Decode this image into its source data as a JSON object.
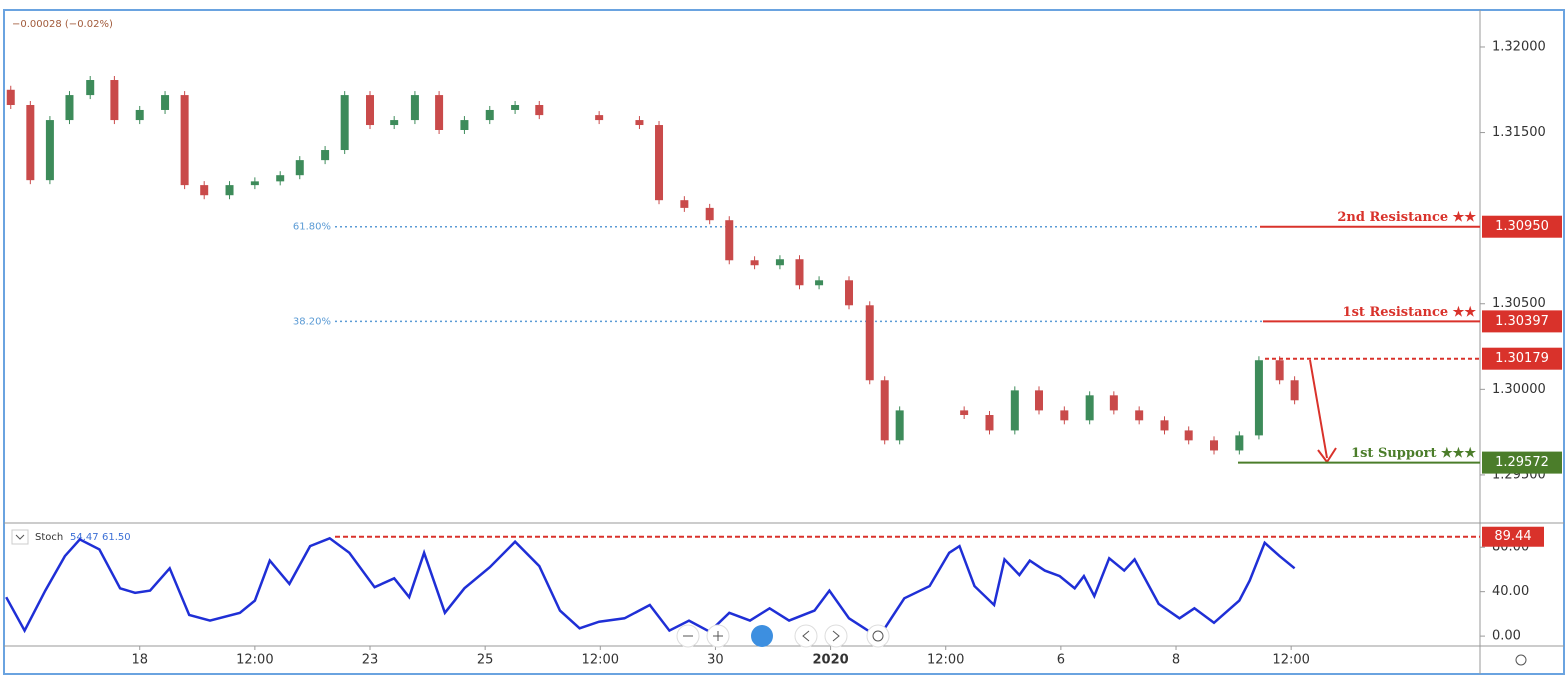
{
  "chart_data": {
    "type": "candlestick",
    "header": "−0.00028 (−0.02%)",
    "xlim": [
      -1.17,
      11.64
    ],
    "xticks": [
      {
        "value": 0,
        "label": "18"
      },
      {
        "value": 1,
        "label": "12:00"
      },
      {
        "value": 2,
        "label": "23"
      },
      {
        "value": 3,
        "label": "25"
      },
      {
        "value": 4,
        "label": "12:00"
      },
      {
        "value": 5,
        "label": "30"
      },
      {
        "value": 6,
        "label": "2020"
      },
      {
        "value": 7,
        "label": "12:00"
      },
      {
        "value": 8,
        "label": "6"
      },
      {
        "value": 9,
        "label": "8"
      },
      {
        "value": 10,
        "label": "12:00"
      }
    ],
    "ylim": [
      1.29225,
      1.32216
    ],
    "yticks": [
      {
        "value": 1.295,
        "label": "1.29500"
      },
      {
        "value": 1.3,
        "label": "1.30000"
      },
      {
        "value": 1.305,
        "label": "1.30500"
      },
      {
        "value": 1.315,
        "label": "1.31500"
      },
      {
        "value": 1.32,
        "label": "1.32000"
      }
    ],
    "up_color": "#3d8b5a",
    "down_color": "#c94a4a",
    "x": [
      -1.12,
      -0.95,
      -0.78,
      -0.61,
      -0.43,
      -0.22,
      0,
      0.22,
      0.39,
      0.56,
      0.78,
      1,
      1.22,
      1.39,
      1.61,
      1.78,
      2,
      2.21,
      2.39,
      2.6,
      2.82,
      3.04,
      3.26,
      3.47,
      3.99,
      4.34,
      4.51,
      4.73,
      4.95,
      5.12,
      5.34,
      5.56,
      5.73,
      5.9,
      6.16,
      6.34,
      6.47,
      6.6,
      7.16,
      7.38,
      7.6,
      7.81,
      8.03,
      8.25,
      8.46,
      8.68,
      8.9,
      9.11,
      9.33,
      9.55,
      9.72,
      9.9,
      10.03
    ],
    "open": [
      1.3175,
      1.31661,
      1.31222,
      1.31573,
      1.31719,
      1.31807,
      1.31573,
      1.31632,
      1.31719,
      1.31193,
      1.31134,
      1.31193,
      1.31215,
      1.31251,
      1.31339,
      1.31398,
      1.31719,
      1.31544,
      1.31573,
      1.31719,
      1.31515,
      1.31573,
      1.31632,
      1.31661,
      1.31602,
      1.31573,
      1.31544,
      1.31105,
      1.3106,
      1.30988,
      1.30754,
      1.30725,
      1.3076,
      1.30608,
      1.30637,
      1.30491,
      1.30053,
      1.29702,
      1.29877,
      1.2985,
      1.2976,
      1.29994,
      1.29877,
      1.29819,
      1.29965,
      1.29877,
      1.29819,
      1.2976,
      1.29702,
      1.29643,
      1.29731,
      1.3017,
      1.30053
    ],
    "close": [
      1.31661,
      1.31222,
      1.31573,
      1.31719,
      1.31807,
      1.31573,
      1.31632,
      1.31719,
      1.31193,
      1.31134,
      1.31193,
      1.31215,
      1.31251,
      1.31339,
      1.31398,
      1.31719,
      1.31544,
      1.31573,
      1.31719,
      1.31515,
      1.31573,
      1.31632,
      1.31661,
      1.31602,
      1.31573,
      1.31544,
      1.31105,
      1.3106,
      1.30988,
      1.30754,
      1.30725,
      1.3076,
      1.30608,
      1.30637,
      1.30491,
      1.30053,
      1.29702,
      1.29877,
      1.2985,
      1.2976,
      1.29994,
      1.29877,
      1.29819,
      1.29965,
      1.29877,
      1.29819,
      1.2976,
      1.29702,
      1.29643,
      1.29731,
      1.3017,
      1.30053,
      1.29936
    ],
    "fib_levels": [
      {
        "label": "61.80%",
        "value": 1.3095
      },
      {
        "label": "38.20%",
        "value": 1.30397
      }
    ],
    "fib_color": "#5b9bd5",
    "levels": [
      {
        "label": "2nd Resistance ★★",
        "value": 1.3095,
        "value_label": "1.30950",
        "color": "#d9322b"
      },
      {
        "label": "1st Resistance ★★",
        "value": 1.30397,
        "value_label": "1.30397",
        "color": "#d9322b"
      },
      {
        "value": 1.30179,
        "value_label": "1.30179",
        "color": "#d9322b"
      },
      {
        "label": "1st Support ★★★",
        "value": 1.29572,
        "value_label": "1.29572",
        "color": "#4b7d2a"
      }
    ],
    "stoch": {
      "name": "Stoch",
      "k_label": "54.47",
      "d_label": "61.50",
      "color": "#1f2fd6",
      "ylim": [
        -8,
        100
      ],
      "yticks": [
        {
          "value": 0,
          "label": "0.00"
        },
        {
          "value": 40,
          "label": "40.00"
        },
        {
          "value": 80,
          "label": "80.00"
        }
      ],
      "x": [
        -1.16,
        -1.0,
        -0.82,
        -0.65,
        -0.52,
        -0.35,
        -0.17,
        -0.04,
        0.09,
        0.26,
        0.43,
        0.61,
        0.87,
        1.0,
        1.13,
        1.3,
        1.48,
        1.65,
        1.82,
        2.04,
        2.21,
        2.34,
        2.47,
        2.65,
        2.82,
        3.04,
        3.26,
        3.47,
        3.65,
        3.82,
        3.99,
        4.21,
        4.43,
        4.6,
        4.77,
        4.95,
        5.12,
        5.3,
        5.47,
        5.64,
        5.86,
        5.99,
        6.16,
        6.34,
        6.47,
        6.64,
        6.86,
        7.03,
        7.12,
        7.25,
        7.42,
        7.51,
        7.64,
        7.73,
        7.86,
        7.99,
        8.12,
        8.2,
        8.29,
        8.42,
        8.55,
        8.64,
        8.85,
        9.03,
        9.16,
        9.33,
        9.55,
        9.64,
        9.77,
        9.9,
        10.03
      ],
      "values": [
        35,
        5,
        41,
        72,
        87,
        78,
        43,
        39,
        41,
        61,
        19,
        14,
        21,
        32,
        68,
        47,
        81,
        88,
        75,
        44,
        52,
        35,
        75,
        21,
        43,
        62,
        85,
        63,
        23,
        7,
        13,
        16,
        28,
        5,
        14,
        4,
        21,
        14,
        25,
        14,
        23,
        41,
        16,
        4,
        7,
        34,
        45,
        75,
        81,
        45,
        28,
        69,
        55,
        68,
        59,
        54,
        43,
        54,
        36,
        70,
        59,
        69,
        29,
        16,
        25,
        12,
        32,
        50,
        84,
        72,
        61
      ],
      "level": {
        "value": 89.44,
        "value_label": "89.44",
        "color": "#d9322b"
      }
    }
  }
}
